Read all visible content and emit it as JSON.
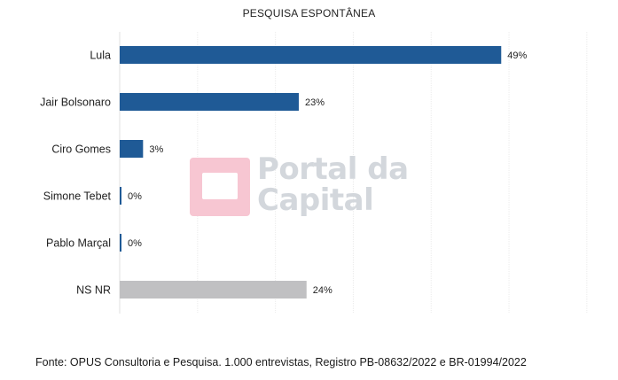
{
  "chart_data": {
    "type": "bar",
    "orientation": "horizontal",
    "title": "PESQUISA ESPONTÂNEA",
    "categories": [
      "Lula",
      "Jair Bolsonaro",
      "Ciro Gomes",
      "Simone Tebet",
      "Pablo Marçal",
      "NS NR"
    ],
    "values": [
      49,
      23,
      3,
      0,
      0,
      24
    ],
    "value_labels": [
      "49%",
      "23%",
      "3%",
      "0%",
      "0%",
      "24%"
    ],
    "unit": "%",
    "colors": [
      "#1f5a96",
      "#1f5a96",
      "#1f5a96",
      "#1f5a96",
      "#1f5a96",
      "#c0c0c2"
    ],
    "xlim": [
      0,
      64
    ],
    "grid": "vertical",
    "legend": "none"
  },
  "watermark": {
    "line1": "Portal da",
    "line2": "Capital"
  },
  "source_note": "Fonte: OPUS Consultoria e Pesquisa. 1.000 entrevistas, Registro PB-08632/2022 e BR-01994/2022"
}
